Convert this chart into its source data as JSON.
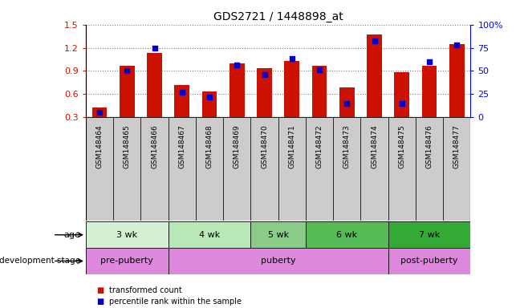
{
  "title": "GDS2721 / 1448898_at",
  "samples": [
    "GSM148464",
    "GSM148465",
    "GSM148466",
    "GSM148467",
    "GSM148468",
    "GSM148469",
    "GSM148470",
    "GSM148471",
    "GSM148472",
    "GSM148473",
    "GSM148474",
    "GSM148475",
    "GSM148476",
    "GSM148477"
  ],
  "transformed_counts": [
    0.42,
    0.97,
    1.13,
    0.72,
    0.63,
    1.0,
    0.93,
    1.03,
    0.97,
    0.68,
    1.37,
    0.88,
    0.97,
    1.25
  ],
  "percentile_ranks": [
    0.05,
    0.5,
    0.75,
    0.27,
    0.22,
    0.56,
    0.46,
    0.63,
    0.51,
    0.15,
    0.82,
    0.15,
    0.6,
    0.78
  ],
  "bar_bottom": 0.3,
  "ylim_left": [
    0.3,
    1.5
  ],
  "left_yticks": [
    0.3,
    0.6,
    0.9,
    1.2,
    1.5
  ],
  "right_yticks": [
    0,
    25,
    50,
    75,
    100
  ],
  "right_yticklabels": [
    "0",
    "25",
    "50",
    "75",
    "100%"
  ],
  "bar_color": "#cc1100",
  "dot_color": "#0000cc",
  "bar_width": 0.55,
  "age_groups": [
    {
      "label": "3 wk",
      "start": 0,
      "end": 3,
      "color": "#cceecc"
    },
    {
      "label": "4 wk",
      "start": 3,
      "end": 6,
      "color": "#aaddaa"
    },
    {
      "label": "5 wk",
      "start": 6,
      "end": 8,
      "color": "#88cc88"
    },
    {
      "label": "6 wk",
      "start": 8,
      "end": 11,
      "color": "#55bb55"
    },
    {
      "label": "7 wk",
      "start": 11,
      "end": 14,
      "color": "#33aa33"
    }
  ],
  "dev_groups": [
    {
      "label": "pre-puberty",
      "start": 0,
      "end": 3,
      "color": "#ee88ee"
    },
    {
      "label": "puberty",
      "start": 3,
      "end": 11,
      "color": "#dd66dd"
    },
    {
      "label": "post-puberty",
      "start": 11,
      "end": 14,
      "color": "#ee88ee"
    }
  ],
  "age_label": "age",
  "dev_label": "development stage",
  "legend_bar_label": "transformed count",
  "legend_dot_label": "percentile rank within the sample",
  "xtick_bg": "#cccccc",
  "grid_linestyle": "dotted",
  "grid_linewidth": 0.8
}
